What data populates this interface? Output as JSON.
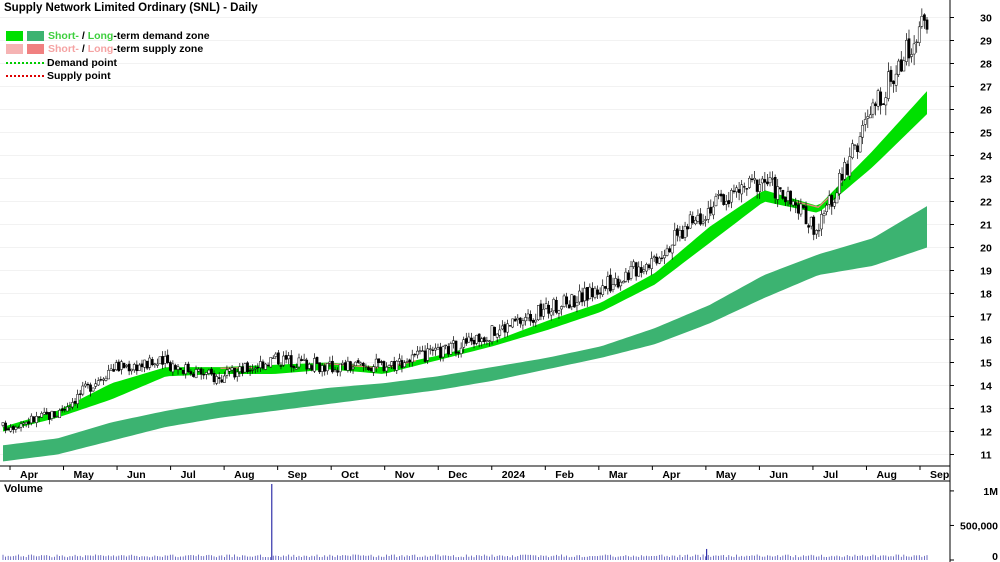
{
  "title": "Supply Network Limited Ordinary (SNL) - Daily",
  "legend": {
    "demand": {
      "short": "Short-",
      "sep": " / ",
      "long": "Long",
      "rest": "-term demand zone"
    },
    "supply": {
      "short": "Short-",
      "sep": " / ",
      "long": "Long",
      "rest": "-term supply zone"
    },
    "demand_point": "Demand point",
    "supply_point": "Supply point"
  },
  "colors": {
    "short_demand": "#00e000",
    "long_demand": "#3cb371",
    "short_supply": "#f5b3b3",
    "long_supply": "#f08080",
    "demand_point": "#00cc00",
    "supply_point": "#dd0000",
    "candle": "#000000",
    "volume": "#3333aa"
  },
  "volume_label": "Volume",
  "chart_data": {
    "type": "candlestick",
    "title": "Supply Network Limited Ordinary (SNL) - Daily",
    "x_tick_labels": [
      "Apr",
      "May",
      "Jun",
      "Jul",
      "Aug",
      "Sep",
      "Oct",
      "Nov",
      "Dec",
      "2024",
      "Feb",
      "Mar",
      "Apr",
      "May",
      "Jun",
      "Jul",
      "Aug",
      "Sep"
    ],
    "y_ticks": [
      11,
      12,
      13,
      14,
      15,
      16,
      17,
      18,
      19,
      20,
      21,
      22,
      23,
      24,
      25,
      26,
      27,
      28,
      29,
      30
    ],
    "ylim": [
      10.5,
      30.5
    ],
    "approx_close": [
      {
        "date": "2023-04",
        "value": 12.2
      },
      {
        "date": "2023-05",
        "value": 12.8
      },
      {
        "date": "2023-06",
        "value": 14.8
      },
      {
        "date": "2023-07",
        "value": 15.0
      },
      {
        "date": "2023-08",
        "value": 14.3
      },
      {
        "date": "2023-09",
        "value": 15.2
      },
      {
        "date": "2023-10",
        "value": 14.8
      },
      {
        "date": "2023-11",
        "value": 14.9
      },
      {
        "date": "2023-12",
        "value": 15.4
      },
      {
        "date": "2024-01",
        "value": 16.3
      },
      {
        "date": "2024-02",
        "value": 17.3
      },
      {
        "date": "2024-03",
        "value": 18.2
      },
      {
        "date": "2024-04",
        "value": 19.6
      },
      {
        "date": "2024-05",
        "value": 21.8
      },
      {
        "date": "2024-06",
        "value": 23.0
      },
      {
        "date": "2024-07",
        "value": 20.8
      },
      {
        "date": "2024-08",
        "value": 26.0
      },
      {
        "date": "2024-09",
        "value": 30.0
      }
    ],
    "short_term_zone": [
      {
        "date": "2023-04",
        "low": 12.0,
        "high": 12.2
      },
      {
        "date": "2023-05",
        "low": 12.6,
        "high": 12.9
      },
      {
        "date": "2023-06",
        "low": 13.4,
        "high": 14.1
      },
      {
        "date": "2023-07",
        "low": 14.4,
        "high": 14.8
      },
      {
        "date": "2023-08",
        "low": 14.5,
        "high": 14.8
      },
      {
        "date": "2023-09",
        "low": 14.5,
        "high": 14.9
      },
      {
        "date": "2023-10",
        "low": 14.7,
        "high": 15.0
      },
      {
        "date": "2023-11",
        "low": 14.5,
        "high": 14.8
      },
      {
        "date": "2023-12",
        "low": 15.1,
        "high": 15.3
      },
      {
        "date": "2024-01",
        "low": 15.7,
        "high": 15.9
      },
      {
        "date": "2024-02",
        "low": 16.4,
        "high": 16.8
      },
      {
        "date": "2024-03",
        "low": 17.2,
        "high": 17.6
      },
      {
        "date": "2024-04",
        "low": 18.4,
        "high": 18.9
      },
      {
        "date": "2024-05",
        "low": 20.2,
        "high": 20.9
      },
      {
        "date": "2024-06",
        "low": 22.0,
        "high": 22.5
      },
      {
        "date": "2024-07",
        "low": 21.5,
        "high": 21.8
      },
      {
        "date": "2024-08",
        "low": 23.5,
        "high": 24.2
      },
      {
        "date": "2024-09",
        "low": 25.8,
        "high": 26.8
      }
    ],
    "long_term_zone": [
      {
        "date": "2023-04",
        "low": 10.7,
        "high": 11.4
      },
      {
        "date": "2023-05",
        "low": 11.0,
        "high": 11.7
      },
      {
        "date": "2023-06",
        "low": 11.6,
        "high": 12.4
      },
      {
        "date": "2023-07",
        "low": 12.2,
        "high": 12.9
      },
      {
        "date": "2023-08",
        "low": 12.6,
        "high": 13.3
      },
      {
        "date": "2023-09",
        "low": 12.9,
        "high": 13.6
      },
      {
        "date": "2023-10",
        "low": 13.2,
        "high": 13.9
      },
      {
        "date": "2023-11",
        "low": 13.5,
        "high": 14.1
      },
      {
        "date": "2023-12",
        "low": 13.8,
        "high": 14.4
      },
      {
        "date": "2024-01",
        "low": 14.2,
        "high": 14.8
      },
      {
        "date": "2024-02",
        "low": 14.7,
        "high": 15.2
      },
      {
        "date": "2024-03",
        "low": 15.2,
        "high": 15.7
      },
      {
        "date": "2024-04",
        "low": 15.8,
        "high": 16.5
      },
      {
        "date": "2024-05",
        "low": 16.7,
        "high": 17.5
      },
      {
        "date": "2024-06",
        "low": 17.8,
        "high": 18.8
      },
      {
        "date": "2024-07",
        "low": 18.8,
        "high": 19.7
      },
      {
        "date": "2024-08",
        "low": 19.2,
        "high": 20.4
      },
      {
        "date": "2024-09",
        "low": 20.0,
        "high": 21.8
      }
    ],
    "volume": {
      "y_tick_labels": [
        "1M",
        "500,000",
        "0"
      ],
      "ylim": [
        0,
        1100000
      ],
      "spikes": [
        {
          "date": "2023-09",
          "value": 1100000
        },
        {
          "date": "2024-05",
          "value": 160000
        }
      ]
    }
  }
}
